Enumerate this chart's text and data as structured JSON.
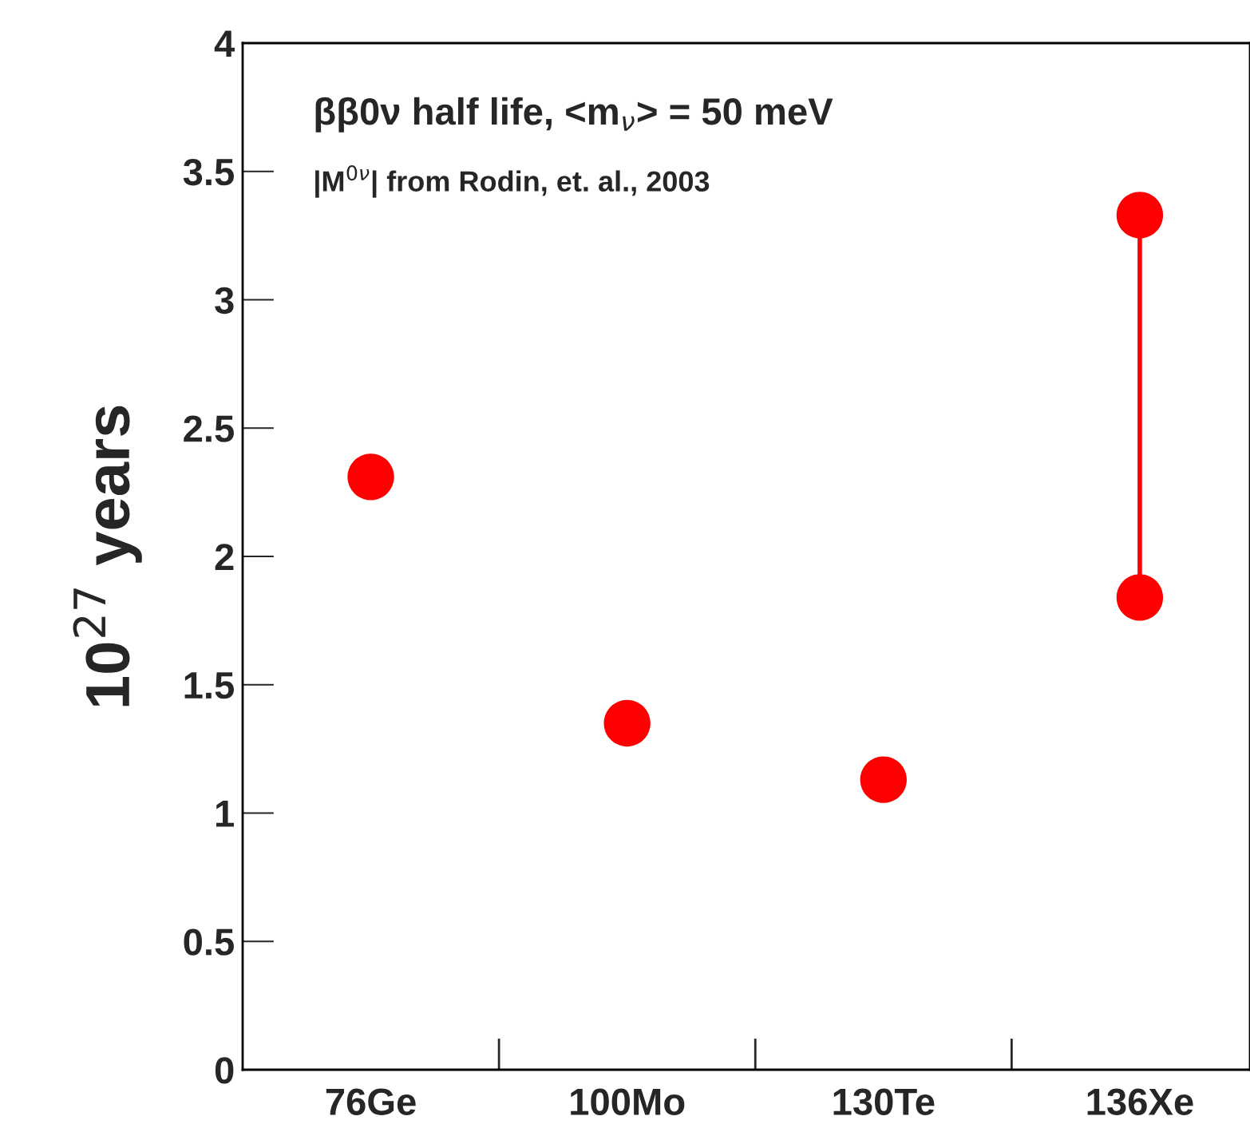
{
  "chart_data": {
    "type": "scatter",
    "categories": [
      "76Ge",
      "100Mo",
      "130Te",
      "136Xe"
    ],
    "ylabel": "10$^{27}$ years",
    "ylim": [
      0,
      4
    ],
    "yticks": [
      0,
      0.5,
      1,
      1.5,
      2,
      2.5,
      3,
      3.5,
      4
    ],
    "grid": false,
    "legend": false,
    "annotations": [
      "ββ0ν half life, <m$_{ν}$> = 50 meV",
      "|M$^{0ν}$| from Rodin, et. al., 2003"
    ],
    "series": [
      {
        "color": "#ff0000",
        "values": [
          2.31,
          1.35,
          1.13,
          null
        ],
        "marker": "circle"
      },
      {
        "type": "line",
        "color": "#ff0000",
        "x": [
          "136Xe",
          "136Xe"
        ],
        "values": [
          1.84,
          3.33
        ],
        "marker": "circle",
        "line_style": "solid"
      }
    ]
  }
}
